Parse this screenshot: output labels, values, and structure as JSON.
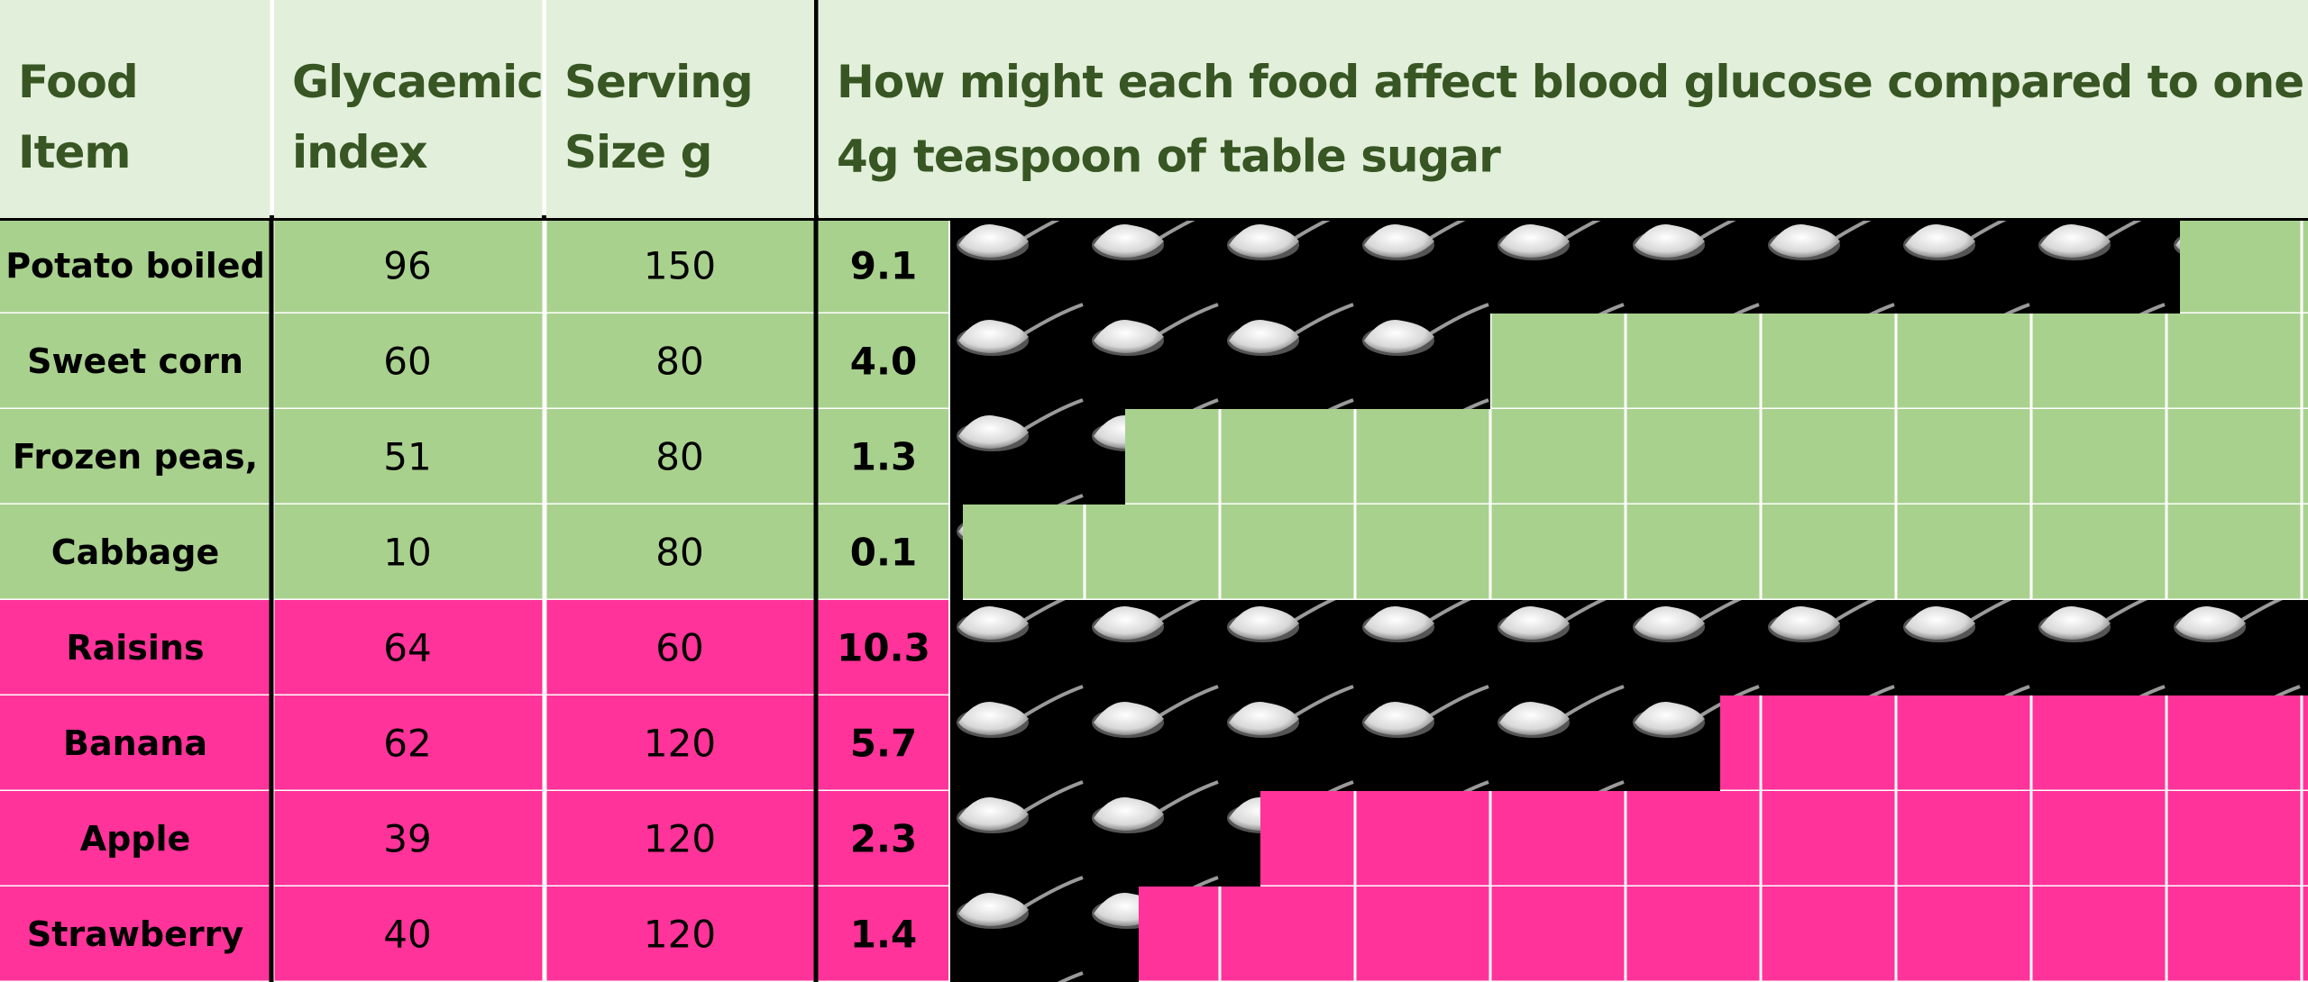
{
  "header": {
    "food": "Food Item",
    "gi": "Glycaemic index",
    "serving": "Serving Size g",
    "question": "How might each food affect blood glucose compared to one 4g teaspoon of table sugar"
  },
  "rows": [
    {
      "food": "Potato boiled",
      "gi": 96,
      "serving": 150,
      "teaspoons": "9.1",
      "color": "#a9d18e"
    },
    {
      "food": "Sweet corn",
      "gi": 60,
      "serving": 80,
      "teaspoons": "4.0",
      "color": "#a9d18e"
    },
    {
      "food": "Frozen peas,",
      "gi": 51,
      "serving": 80,
      "teaspoons": "1.3",
      "color": "#a9d18e"
    },
    {
      "food": "Cabbage",
      "gi": 10,
      "serving": 80,
      "teaspoons": "0.1",
      "color": "#a9d18e"
    },
    {
      "food": "Raisins",
      "gi": 64,
      "serving": 60,
      "teaspoons": "10.3",
      "color": "#ff3399"
    },
    {
      "food": "Banana",
      "gi": 62,
      "serving": 120,
      "teaspoons": "5.7",
      "color": "#ff3399"
    },
    {
      "food": "Apple",
      "gi": 39,
      "serving": 120,
      "teaspoons": "2.3",
      "color": "#ff3399"
    },
    {
      "food": "Strawberry",
      "gi": 40,
      "serving": 120,
      "teaspoons": "1.4",
      "color": "#ff3399"
    }
  ]
}
